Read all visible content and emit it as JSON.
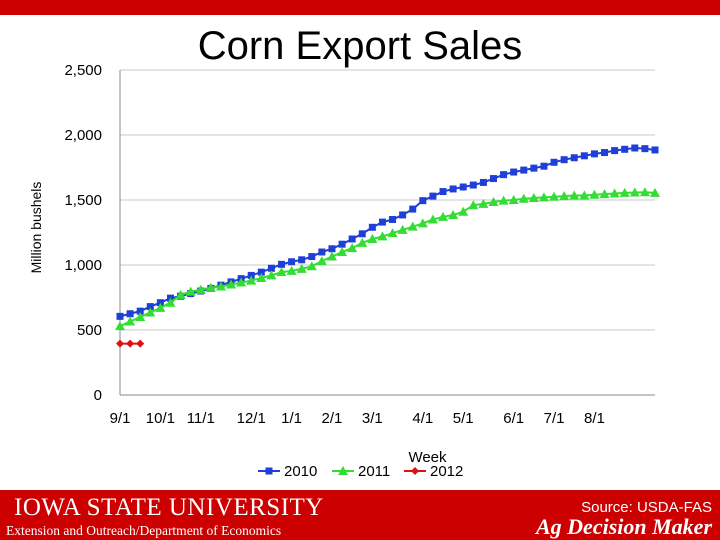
{
  "slide": {
    "title": "Corn Export Sales"
  },
  "footer": {
    "university": "IOWA STATE UNIVERSITY",
    "subtitle": "Extension and Outreach/Department of Economics",
    "source": "Source: USDA-FAS",
    "brand": "Ag Decision Maker",
    "accent_color": "#cc0000"
  },
  "chart_data": {
    "type": "line",
    "title": "Corn Export Sales",
    "xlabel": "Week",
    "ylabel": "Million bushels",
    "ylim": [
      0,
      2500
    ],
    "yticks": [
      0,
      500,
      1000,
      1500,
      2000,
      2500
    ],
    "ytick_labels": [
      "0",
      "500",
      "1,000",
      "1,500",
      "2,000",
      "2,500"
    ],
    "x_weeks_total": 53,
    "xtick_labels": [
      "9/1",
      "10/1",
      "11/1",
      "12/1",
      "1/1",
      "2/1",
      "3/1",
      "4/1",
      "5/1",
      "6/1",
      "7/1",
      "8/1"
    ],
    "xtick_weeks": [
      0,
      4,
      8,
      13,
      17,
      21,
      25,
      30,
      34,
      39,
      43,
      47
    ],
    "grid": "horizontal",
    "legend": "bottom",
    "series": [
      {
        "name": "2010",
        "color": "#1f3fd8",
        "marker": "square",
        "values": [
          605,
          625,
          645,
          680,
          710,
          745,
          760,
          780,
          800,
          820,
          845,
          870,
          895,
          920,
          945,
          975,
          1005,
          1025,
          1040,
          1065,
          1100,
          1125,
          1160,
          1200,
          1240,
          1290,
          1330,
          1350,
          1385,
          1430,
          1495,
          1530,
          1565,
          1585,
          1600,
          1615,
          1635,
          1665,
          1695,
          1715,
          1730,
          1745,
          1760,
          1790,
          1810,
          1825,
          1840,
          1855,
          1865,
          1880,
          1890,
          1900,
          1895,
          1885
        ]
      },
      {
        "name": "2011",
        "color": "#33dd33",
        "marker": "triangle",
        "values": [
          530,
          565,
          600,
          635,
          670,
          710,
          770,
          795,
          810,
          825,
          835,
          850,
          865,
          880,
          900,
          920,
          945,
          955,
          970,
          990,
          1030,
          1065,
          1100,
          1130,
          1170,
          1200,
          1220,
          1245,
          1270,
          1295,
          1320,
          1350,
          1370,
          1385,
          1410,
          1460,
          1470,
          1485,
          1495,
          1500,
          1510,
          1515,
          1520,
          1525,
          1530,
          1535,
          1535,
          1540,
          1545,
          1550,
          1555,
          1558,
          1560,
          1555
        ]
      },
      {
        "name": "2012",
        "color": "#dd1111",
        "marker": "diamond",
        "values": [
          395,
          395,
          395
        ]
      }
    ]
  }
}
